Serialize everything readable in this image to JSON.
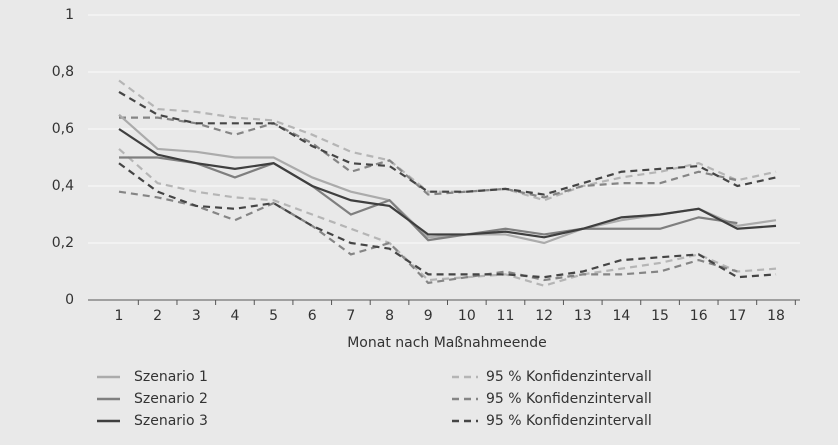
{
  "chart_data": {
    "type": "line",
    "x_label": "Monat nach Maßnahmeende",
    "categories": [
      1,
      2,
      3,
      4,
      5,
      6,
      7,
      8,
      9,
      10,
      11,
      12,
      13,
      14,
      15,
      16,
      17,
      18
    ],
    "ylim": [
      0,
      1
    ],
    "yticks": [
      0,
      {
        "value": 0.2,
        "label": "0,2"
      },
      {
        "value": 0.4,
        "label": "0,4"
      },
      {
        "value": 0.6,
        "label": "0,6"
      },
      {
        "value": 0.8,
        "label": "0,8"
      },
      1
    ],
    "grid": true,
    "series": [
      {
        "name": "Szenario 1",
        "color": "#ababab",
        "values": [
          0.65,
          0.53,
          0.52,
          0.5,
          0.5,
          0.43,
          0.38,
          0.35,
          0.22,
          0.23,
          0.23,
          0.2,
          0.25,
          0.28,
          0.3,
          0.32,
          0.26,
          0.28
        ]
      },
      {
        "name": "Szenario 2",
        "color": "#7f7f7f",
        "values": [
          0.5,
          0.5,
          0.48,
          0.43,
          0.48,
          0.4,
          0.3,
          0.35,
          0.21,
          0.23,
          0.25,
          0.23,
          0.25,
          0.25,
          0.25,
          0.29,
          0.27,
          null
        ]
      },
      {
        "name": "Szenario 3",
        "color": "#3f3f3f",
        "values": [
          0.6,
          0.51,
          0.48,
          0.46,
          0.48,
          0.4,
          0.35,
          0.33,
          0.23,
          0.23,
          0.24,
          0.22,
          0.25,
          0.29,
          0.3,
          0.32,
          0.25,
          0.26
        ]
      }
    ],
    "confidence_intervals": [
      {
        "name": "95 % Konfidenzintervall",
        "color": "#b5b5b5",
        "upper": [
          0.77,
          0.67,
          0.66,
          0.64,
          0.63,
          0.58,
          0.52,
          0.49,
          0.38,
          0.38,
          0.39,
          0.35,
          0.4,
          0.43,
          0.45,
          0.48,
          0.42,
          0.45
        ],
        "lower": [
          0.53,
          0.41,
          0.38,
          0.36,
          0.35,
          0.3,
          0.25,
          0.2,
          0.07,
          0.08,
          0.09,
          0.05,
          0.09,
          0.11,
          0.13,
          0.16,
          0.1,
          0.11
        ]
      },
      {
        "name": "95 % Konfidenzintervall",
        "color": "#858585",
        "upper": [
          0.64,
          0.64,
          0.62,
          0.58,
          0.62,
          0.55,
          0.45,
          0.49,
          0.37,
          0.38,
          0.39,
          0.36,
          0.4,
          0.41,
          0.41,
          0.45,
          0.42,
          null
        ],
        "lower": [
          0.38,
          0.36,
          0.33,
          0.28,
          0.34,
          0.26,
          0.16,
          0.2,
          0.06,
          0.08,
          0.1,
          0.07,
          0.09,
          0.09,
          0.1,
          0.14,
          0.1,
          null
        ]
      },
      {
        "name": "95 % Konfidenzintervall",
        "color": "#454545",
        "upper": [
          0.73,
          0.65,
          0.62,
          0.62,
          0.62,
          0.54,
          0.48,
          0.47,
          0.38,
          0.38,
          0.39,
          0.37,
          0.41,
          0.45,
          0.46,
          0.47,
          0.4,
          0.43
        ],
        "lower": [
          0.48,
          0.38,
          0.33,
          0.32,
          0.34,
          0.26,
          0.2,
          0.18,
          0.09,
          0.09,
          0.09,
          0.08,
          0.1,
          0.14,
          0.15,
          0.16,
          0.08,
          0.09
        ]
      }
    ]
  }
}
